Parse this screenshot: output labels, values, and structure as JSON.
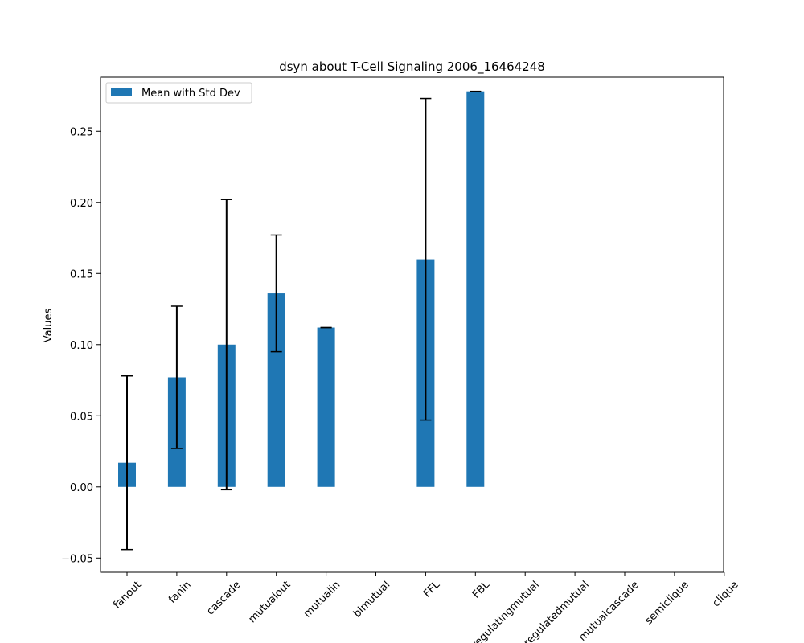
{
  "chart_data": {
    "type": "bar",
    "title": "dsyn about T-Cell Signaling 2006_16464248",
    "xlabel": "",
    "ylabel": "Values",
    "ylim": [
      -0.06,
      0.288
    ],
    "yticks": [
      -0.05,
      0.0,
      0.05,
      0.1,
      0.15,
      0.2,
      0.25
    ],
    "ytick_labels": [
      "−0.05",
      "0.00",
      "0.05",
      "0.10",
      "0.15",
      "0.20",
      "0.25"
    ],
    "categories": [
      "fanout",
      "fanin",
      "cascade",
      "mutualout",
      "mutualin",
      "bimutual",
      "FFL",
      "FBL",
      "regulatingmutual",
      "regulatedmutual",
      "mutualcascade",
      "semiclique",
      "clique"
    ],
    "series": [
      {
        "name": "Mean with Std Dev",
        "color": "#1f77b4",
        "values": [
          0.017,
          0.077,
          0.1,
          0.136,
          0.112,
          null,
          0.16,
          0.278,
          null,
          null,
          null,
          null,
          null
        ],
        "std": [
          0.061,
          0.05,
          0.102,
          0.041,
          0.0,
          null,
          0.113,
          0.0,
          null,
          null,
          null,
          null,
          null
        ]
      }
    ],
    "legend": {
      "position": "top-left"
    },
    "grid": false
  }
}
